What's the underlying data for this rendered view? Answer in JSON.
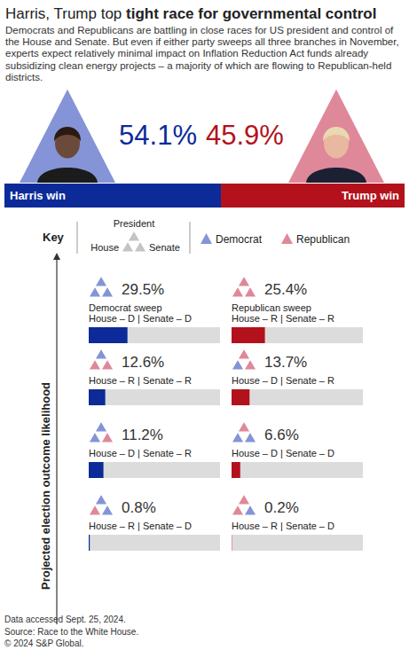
{
  "chart_data": [
    {
      "type": "bar",
      "orientation": "horizontal",
      "stacked": true,
      "title": "Harris, Trump top tight race for governmental control",
      "title_emphasis": "tight race for governmental control",
      "subtitle": "Democrats and Republicans are battling in close races for US president and control of the House and Senate. But even if either party sweeps all three branches in November, experts expect relatively minimal impact on Inflation Reduction Act funds already subsidizing clean energy projects – a majority of which are flowing to Republican-held districts.",
      "series": [
        {
          "name": "Harris win",
          "color": "#0c2b98",
          "values": [
            54.1
          ],
          "value_labels": [
            "54.1%"
          ]
        },
        {
          "name": "Trump win",
          "color": "#b3121c",
          "values": [
            45.9
          ],
          "value_labels": [
            "45.9%"
          ]
        }
      ],
      "xlim": [
        0,
        100
      ],
      "tick_labels": false,
      "data_labels": true
    },
    {
      "type": "bar",
      "orientation": "horizontal",
      "ylabel": "Projected election outcome likelihood",
      "categories": [
        "Democrat sweep\nHouse – D | Senate – D",
        "House – R | Senate – R",
        "House – D | Senate – R",
        "House – R | Senate – D",
        "Republican sweep\nHouse – R | Senate – R",
        "House – D | Senate – R",
        "House – D | Senate – D",
        "House – R | Senate – D"
      ],
      "values": [
        29.5,
        12.6,
        11.2,
        0.8,
        25.4,
        13.7,
        6.6,
        0.2
      ],
      "value_labels": [
        "29.5%",
        "12.6%",
        "11.2%",
        "0.8%",
        "25.4%",
        "13.7%",
        "6.6%",
        "0.2%"
      ],
      "colors": [
        "#0c2b98",
        "#0c2b98",
        "#0c2b98",
        "#0c2b98",
        "#b3121c",
        "#b3121c",
        "#b3121c",
        "#b3121c"
      ],
      "president": [
        "Democrat",
        "Democrat",
        "Democrat",
        "Democrat",
        "Republican",
        "Republican",
        "Republican",
        "Republican"
      ],
      "house": [
        "Democrat",
        "Republican",
        "Democrat",
        "Republican",
        "Republican",
        "Democrat",
        "Democrat",
        "Republican"
      ],
      "senate": [
        "Democrat",
        "Republican",
        "Republican",
        "Democrat",
        "Republican",
        "Republican",
        "Democrat",
        "Democrat"
      ],
      "key": {
        "title": "Key",
        "president": "President",
        "house": "House",
        "senate": "Senate"
      },
      "parties": [
        {
          "name": "Democrat",
          "color": "#8494d6"
        },
        {
          "name": "Republican",
          "color": "#df8899"
        }
      ],
      "xlim": [
        0,
        100
      ],
      "tick_labels": false,
      "data_labels": true
    }
  ],
  "notes": [
    "Data accessed Sept. 25, 2024.",
    "Source: Race to the White House.",
    "© 2024 S&P Global."
  ]
}
